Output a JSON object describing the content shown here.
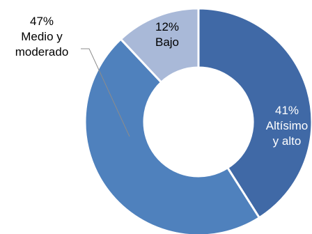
{
  "chart_data": {
    "type": "pie",
    "style": "donut",
    "title": "",
    "slices": [
      {
        "label": "Altísimo y alto",
        "lines": [
          "Altísimo",
          "y alto"
        ],
        "value": 41,
        "pct_label": "41%",
        "color": "#4069A6"
      },
      {
        "label": "Medio y moderado",
        "lines": [
          "Medio y",
          "moderado"
        ],
        "value": 47,
        "pct_label": "47%",
        "color": "#4F81BD"
      },
      {
        "label": "Bajo",
        "lines": [
          "Bajo"
        ],
        "value": 12,
        "pct_label": "12%",
        "color": "#A9B9D8"
      }
    ],
    "legend": "none"
  }
}
